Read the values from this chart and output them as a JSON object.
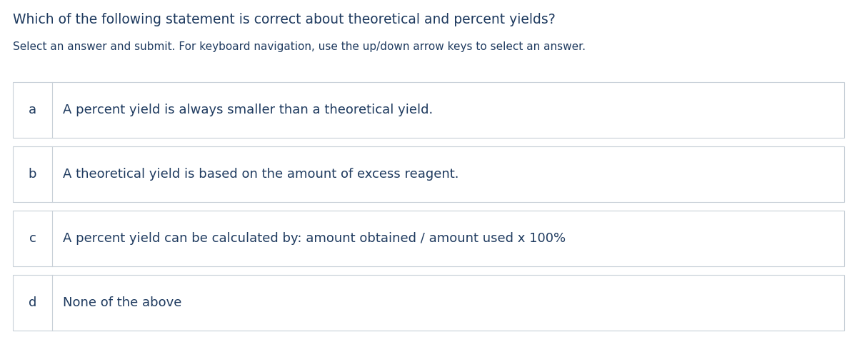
{
  "title": "Which of the following statement is correct about theoretical and percent yields?",
  "subtitle": "Select an answer and submit. For keyboard navigation, use the up/down arrow keys to select an answer.",
  "options": [
    {
      "letter": "a",
      "text": "A percent yield is always smaller than a theoretical yield."
    },
    {
      "letter": "b",
      "text": "A theoretical yield is based on the amount of excess reagent."
    },
    {
      "letter": "c",
      "text": "A percent yield can be calculated by: amount obtained / amount used x 100%"
    },
    {
      "letter": "d",
      "text": "None of the above"
    }
  ],
  "bg_color": "#ffffff",
  "text_color": "#1e3a5f",
  "border_color": "#c8d0d8",
  "divider_color": "#c8d0d8",
  "title_fontsize": 13.5,
  "subtitle_fontsize": 11,
  "option_letter_fontsize": 13,
  "option_text_fontsize": 13,
  "fig_width": 12.0,
  "fig_height": 4.79,
  "title_bold": false,
  "letter_bold": false
}
